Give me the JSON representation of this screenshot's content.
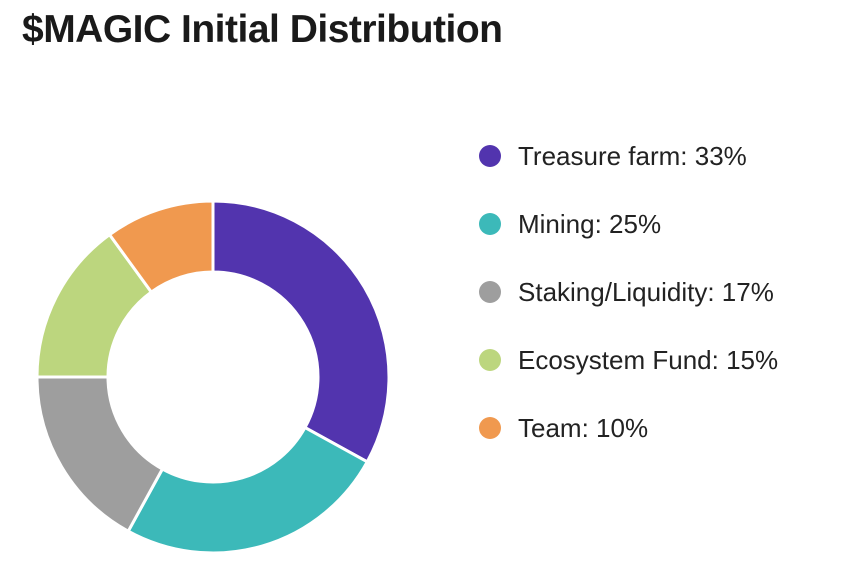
{
  "chart_data": {
    "type": "pie",
    "title": "$MAGIC Initial Distribution",
    "donut": true,
    "legend_position": "right",
    "categories": [
      "Treasure farm",
      "Mining",
      "Staking/Liquidity",
      "Ecosystem Fund",
      "Team"
    ],
    "values": [
      33,
      25,
      17,
      15,
      10
    ],
    "colors": [
      "#5234AE",
      "#3CB9B9",
      "#9E9E9E",
      "#BCD67E",
      "#F0994F"
    ],
    "legend": [
      "Treasure farm: 33%",
      "Mining: 25%",
      "Staking/Liquidity: 17%",
      "Ecosystem Fund: 15%",
      "Team: 10%"
    ]
  }
}
